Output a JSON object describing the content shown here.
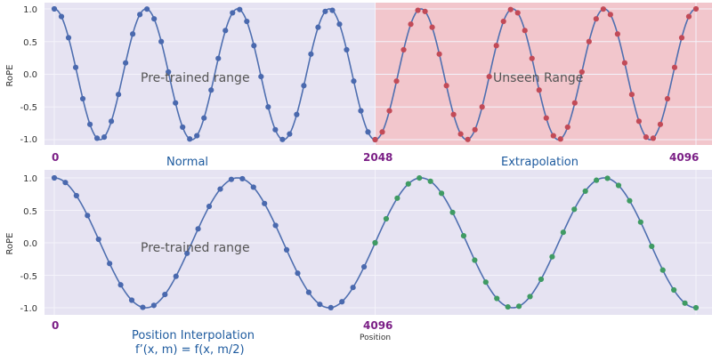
{
  "colors": {
    "plot_bg": "#e6e3f2",
    "grid": "#f4f3fa",
    "curve": "#4f6fb0",
    "dot_blue": "#4a69ae",
    "dot_red": "#c24a57",
    "dot_green": "#3f9b63",
    "unseen_bg": "#f2c6cc",
    "tick_purple": "#7b1f86",
    "caption_blue": "#1d5a9e",
    "overlay_text": "#555555",
    "axis_text": "#333333"
  },
  "chart_data": [
    {
      "type": "line",
      "ylabel": "RoPE",
      "ylim": [
        -1.0,
        1.0
      ],
      "yticks": [
        1.0,
        0.5,
        0.0,
        -0.5,
        -1.0
      ],
      "ytick_labels": [
        "1.0",
        "0.5",
        "0.0",
        "-0.5",
        "-1.0"
      ],
      "xlim": [
        0,
        4096
      ],
      "periods": 7,
      "position_ticks": [
        "0",
        "2048",
        "4096"
      ],
      "captions": [
        "Normal",
        "Extrapolation"
      ],
      "annotations": [
        "Pre-trained range",
        "Unseen Range"
      ],
      "shaded_region": [
        2048,
        4096
      ],
      "series": [
        {
          "color": "dot_blue",
          "x_range": [
            0,
            2048
          ],
          "points": 46
        },
        {
          "color": "dot_red",
          "x_range": [
            2048,
            4096
          ],
          "points": 46
        }
      ]
    },
    {
      "type": "line",
      "ylabel": "RoPE",
      "ylim": [
        -1.0,
        1.0
      ],
      "yticks": [
        1.0,
        0.5,
        0.0,
        -0.5,
        -1.0
      ],
      "ytick_labels": [
        "1.0",
        "0.5",
        "0.0",
        "-0.5",
        "-1.0"
      ],
      "xlim": [
        0,
        4096
      ],
      "periods": 3.5,
      "position_ticks": [
        "0",
        "4096"
      ],
      "xlabel": "Position",
      "captions": [
        "Position Interpolation",
        "f’(x, m) = f(x, m/2)"
      ],
      "annotations": [
        "Pre-trained range"
      ],
      "series": [
        {
          "color": "dot_blue",
          "x_range": [
            0,
            2048
          ],
          "points": 30
        },
        {
          "color": "dot_green",
          "x_range": [
            2048,
            4096
          ],
          "points": 30
        }
      ]
    }
  ]
}
